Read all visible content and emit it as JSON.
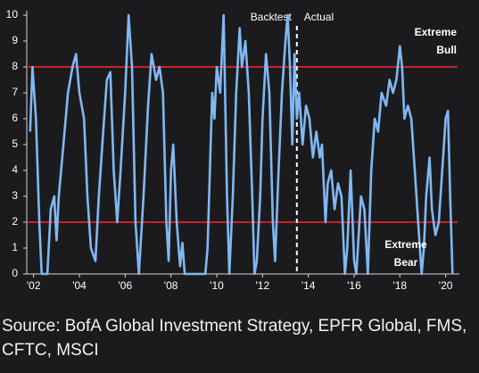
{
  "chart_data": {
    "type": "line",
    "x": [
      2001.85,
      2001.95,
      2002.1,
      2002.25,
      2002.35,
      2002.6,
      2002.75,
      2002.9,
      2003.0,
      2003.1,
      2003.3,
      2003.5,
      2003.7,
      2003.85,
      2004.0,
      2004.2,
      2004.35,
      2004.5,
      2004.7,
      2004.85,
      2005.0,
      2005.2,
      2005.35,
      2005.5,
      2005.65,
      2005.8,
      2006.0,
      2006.15,
      2006.3,
      2006.45,
      2006.6,
      2006.8,
      2007.0,
      2007.15,
      2007.35,
      2007.5,
      2007.65,
      2007.8,
      2007.9,
      2008.0,
      2008.1,
      2008.25,
      2008.4,
      2008.5,
      2008.6,
      2009.5,
      2009.6,
      2009.7,
      2009.8,
      2009.9,
      2010.0,
      2010.15,
      2010.3,
      2010.45,
      2010.55,
      2010.7,
      2010.85,
      2011.0,
      2011.1,
      2011.25,
      2011.4,
      2011.55,
      2011.65,
      2011.75,
      2011.9,
      2012.0,
      2012.15,
      2012.3,
      2012.45,
      2012.55,
      2012.7,
      2012.85,
      2013.0,
      2013.1,
      2013.2,
      2013.3,
      2013.4,
      2013.5,
      2013.6,
      2013.75,
      2013.9,
      2014.05,
      2014.2,
      2014.35,
      2014.5,
      2014.6,
      2014.75,
      2014.85,
      2015.0,
      2015.15,
      2015.3,
      2015.45,
      2015.6,
      2015.7,
      2015.85,
      2016.0,
      2016.1,
      2016.3,
      2016.45,
      2016.6,
      2016.75,
      2016.9,
      2017.05,
      2017.2,
      2017.4,
      2017.55,
      2017.7,
      2017.85,
      2018.0,
      2018.1,
      2018.2,
      2018.35,
      2018.5,
      2018.65,
      2018.8,
      2018.95,
      2019.05,
      2019.15,
      2019.3,
      2019.4,
      2019.55,
      2019.7,
      2019.85,
      2020.0,
      2020.1,
      2020.2,
      2020.3
    ],
    "values": [
      5.5,
      8.0,
      6,
      2,
      0,
      0,
      2.5,
      3,
      1.3,
      3,
      5,
      7,
      8,
      8.5,
      7,
      6,
      3,
      1,
      0.5,
      3,
      5,
      7.5,
      7.8,
      4,
      2,
      4,
      7,
      10,
      8,
      2,
      0,
      3,
      6.5,
      8.5,
      7.5,
      8,
      7,
      2,
      0.5,
      4,
      5,
      2,
      0.3,
      1.2,
      0,
      0,
      1,
      4,
      7,
      6,
      8,
      7,
      10,
      3,
      0,
      3,
      7,
      9.5,
      8,
      9,
      7,
      3,
      0,
      0.5,
      3,
      6,
      8.5,
      7,
      2,
      0.5,
      4,
      7,
      9,
      10,
      8,
      5,
      8.5,
      6,
      7,
      5,
      6.5,
      6,
      4.5,
      5.5,
      4.5,
      5,
      2,
      3.5,
      4,
      2.5,
      3.5,
      3,
      0,
      1,
      4,
      0.5,
      0,
      3,
      2.5,
      0,
      4,
      6,
      5.5,
      7,
      6.5,
      7.5,
      7,
      7.5,
      8.8,
      8,
      6,
      6.5,
      6,
      4,
      2,
      0,
      1,
      3,
      4.5,
      2.5,
      1.5,
      2,
      4,
      6,
      6.3,
      3,
      0
    ],
    "color": "#80b8f2",
    "xlim": [
      2001.7,
      2020.6
    ],
    "xticks": [
      {
        "value": 2002,
        "label": "'02"
      },
      {
        "value": 2004,
        "label": "'04"
      },
      {
        "value": 2006,
        "label": "'06"
      },
      {
        "value": 2008,
        "label": "'08"
      },
      {
        "value": 2010,
        "label": "'10"
      },
      {
        "value": 2012,
        "label": "'12"
      },
      {
        "value": 2014,
        "label": "'14"
      },
      {
        "value": 2016,
        "label": "'16"
      },
      {
        "value": 2018,
        "label": "'18"
      },
      {
        "value": 2020,
        "label": "'20"
      }
    ],
    "ylim": [
      0,
      10
    ],
    "yticks": [
      0,
      1,
      2,
      3,
      4,
      5,
      6,
      7,
      8,
      9,
      10
    ],
    "reference_lines": {
      "values": [
        8,
        2
      ],
      "color": "#c8202c"
    },
    "divider": 2013.5,
    "divider_labels": [
      "Backtest",
      "Actual"
    ],
    "bull_label": [
      "Extreme",
      "Bull"
    ],
    "bear_label": [
      "Extreme",
      "Bear"
    ],
    "source": "Source: BofA Global Investment Strategy, EPFR Global, FMS, CFTC, MSCI"
  }
}
